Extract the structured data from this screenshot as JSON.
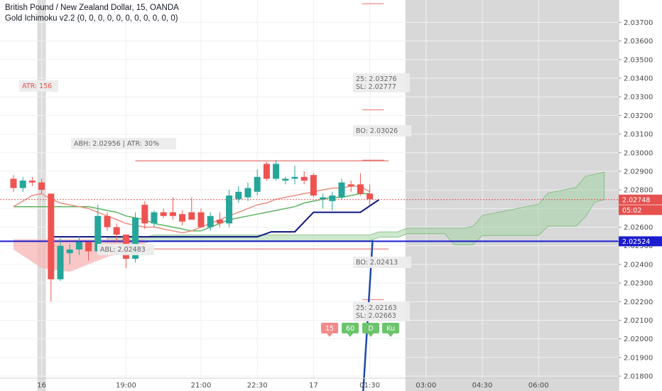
{
  "header": {
    "symbol_line": "British Pound / New Zealand Dollar, 15, OANDA",
    "indicator_line": "Gold Ichimoku v2.2 (0, 0, 0, 0, 0, 0, 0, 0, 0, 0, 0)"
  },
  "colors": {
    "bull": "#26a69a",
    "bear": "#ef5350",
    "tenkan": "#0d1680",
    "price_line": "#e5514f",
    "kijun_green": "#5fb35f",
    "cloud_green": "#a5d6a7",
    "cloud_red": "#f8b4b4",
    "blue_level": "#1c1cd0",
    "future_shade": "#d8d8d8"
  },
  "chart_data": {
    "type": "candlestick",
    "x_labels": [
      {
        "label": "16",
        "i": 3
      },
      {
        "label": "19:00",
        "i": 12
      },
      {
        "label": "21:00",
        "i": 20
      },
      {
        "label": "22:30",
        "i": 26
      },
      {
        "label": "17",
        "i": 32
      },
      {
        "label": "01:30",
        "i": 38
      },
      {
        "label": "03:00",
        "i": 44
      },
      {
        "label": "04:30",
        "i": 50
      },
      {
        "label": "06:00",
        "i": 56
      }
    ],
    "y_ticks": [
      "2.03700",
      "2.03600",
      "2.03500",
      "2.03400",
      "2.03300",
      "2.03200",
      "2.03100",
      "2.03000",
      "2.02900",
      "2.02800",
      "2.02700",
      "2.02600",
      "2.02500",
      "2.02400",
      "2.02300",
      "2.02200",
      "2.02100",
      "2.02000",
      "2.01900",
      "2.01800"
    ],
    "ylim": [
      2.0172,
      2.0382
    ],
    "candles": [
      {
        "o": 2.0286,
        "h": 2.0288,
        "l": 2.0279,
        "c": 2.0281
      },
      {
        "o": 2.0281,
        "h": 2.0287,
        "l": 2.0279,
        "c": 2.0285
      },
      {
        "o": 2.0285,
        "h": 2.0287,
        "l": 2.0282,
        "c": 2.0284
      },
      {
        "o": 2.0284,
        "h": 2.0286,
        "l": 2.0278,
        "c": 2.028
      },
      {
        "o": 2.0278,
        "h": 2.0278,
        "l": 2.022,
        "c": 2.0232
      },
      {
        "o": 2.0232,
        "h": 2.0254,
        "l": 2.0231,
        "c": 2.025
      },
      {
        "o": 2.0246,
        "h": 2.0251,
        "l": 2.024,
        "c": 2.0248
      },
      {
        "o": 2.0248,
        "h": 2.0255,
        "l": 2.0245,
        "c": 2.0252
      },
      {
        "o": 2.0252,
        "h": 2.0252,
        "l": 2.0242,
        "c": 2.0247
      },
      {
        "o": 2.0247,
        "h": 2.0272,
        "l": 2.0245,
        "c": 2.0266
      },
      {
        "o": 2.0266,
        "h": 2.0268,
        "l": 2.0258,
        "c": 2.026
      },
      {
        "o": 2.026,
        "h": 2.0262,
        "l": 2.0252,
        "c": 2.0256
      },
      {
        "o": 2.0256,
        "h": 2.0256,
        "l": 2.0238,
        "c": 2.0243
      },
      {
        "o": 2.0243,
        "h": 2.0268,
        "l": 2.0241,
        "c": 2.0265
      },
      {
        "o": 2.0272,
        "h": 2.0274,
        "l": 2.0259,
        "c": 2.0262
      },
      {
        "o": 2.0262,
        "h": 2.0269,
        "l": 2.026,
        "c": 2.0268
      },
      {
        "o": 2.0268,
        "h": 2.027,
        "l": 2.0265,
        "c": 2.0266
      },
      {
        "o": 2.0268,
        "h": 2.0276,
        "l": 2.0264,
        "c": 2.0266
      },
      {
        "o": 2.0267,
        "h": 2.0269,
        "l": 2.0261,
        "c": 2.0263
      },
      {
        "o": 2.0268,
        "h": 2.0276,
        "l": 2.0264,
        "c": 2.0264
      },
      {
        "o": 2.0268,
        "h": 2.027,
        "l": 2.0262,
        "c": 2.026
      },
      {
        "o": 2.026,
        "h": 2.0268,
        "l": 2.0258,
        "c": 2.0266
      },
      {
        "o": 2.0264,
        "h": 2.0268,
        "l": 2.026,
        "c": 2.0262
      },
      {
        "o": 2.0262,
        "h": 2.028,
        "l": 2.026,
        "c": 2.0277
      },
      {
        "o": 2.0275,
        "h": 2.0282,
        "l": 2.0273,
        "c": 2.0279
      },
      {
        "o": 2.0276,
        "h": 2.0284,
        "l": 2.0274,
        "c": 2.0281
      },
      {
        "o": 2.0279,
        "h": 2.0291,
        "l": 2.0277,
        "c": 2.0287
      },
      {
        "o": 2.0294,
        "h": 2.0295,
        "l": 2.0285,
        "c": 2.0286
      },
      {
        "o": 2.0286,
        "h": 2.0296,
        "l": 2.0285,
        "c": 2.0294
      },
      {
        "o": 2.0285,
        "h": 2.0287,
        "l": 2.0283,
        "c": 2.0286
      },
      {
        "o": 2.0286,
        "h": 2.0293,
        "l": 2.0283,
        "c": 2.0287
      },
      {
        "o": 2.0287,
        "h": 2.029,
        "l": 2.0283,
        "c": 2.0285
      },
      {
        "o": 2.0288,
        "h": 2.0289,
        "l": 2.0276,
        "c": 2.0277
      },
      {
        "o": 2.0275,
        "h": 2.0278,
        "l": 2.027,
        "c": 2.0276
      },
      {
        "o": 2.0274,
        "h": 2.0279,
        "l": 2.0269,
        "c": 2.0277
      },
      {
        "o": 2.0276,
        "h": 2.0286,
        "l": 2.0275,
        "c": 2.0284
      },
      {
        "o": 2.0283,
        "h": 2.0285,
        "l": 2.0279,
        "c": 2.0282
      },
      {
        "o": 2.0283,
        "h": 2.0289,
        "l": 2.0277,
        "c": 2.0278
      },
      {
        "o": 2.0278,
        "h": 2.0283,
        "l": 2.0272,
        "c": 2.0275
      }
    ],
    "series": [
      {
        "values": [
          2.0271,
          2.0274,
          2.0277,
          2.0278,
          2.0275,
          2.0273,
          2.0272,
          2.0271,
          2.027,
          2.0268,
          2.0266,
          2.0264,
          2.0262,
          2.0261,
          2.026,
          2.026,
          2.0259,
          2.0258,
          2.0257,
          2.0258,
          2.026,
          2.0262,
          2.0264,
          2.0266,
          2.0268,
          2.027,
          2.0272,
          2.0273,
          2.0275,
          2.0276,
          2.0277,
          2.0278,
          2.0279,
          2.028,
          2.0281,
          2.0281,
          2.0282,
          2.0282,
          2.0279
        ]
      },
      {
        "values": [
          2.0271,
          2.0271,
          2.0271,
          2.0271,
          2.0271,
          2.0271,
          2.0271,
          2.0271,
          2.0271,
          2.027,
          2.0269,
          2.0268,
          2.0266,
          2.0265,
          2.0264,
          2.0262,
          2.0261,
          2.026,
          2.0259,
          2.0258,
          2.0258,
          2.026,
          2.0262,
          2.0264,
          2.0265,
          2.0266,
          2.0267,
          2.0268,
          2.0269,
          2.027,
          2.0271,
          2.0273,
          2.0274,
          2.0275,
          2.0276,
          2.0276,
          2.0277,
          2.0278,
          2.0278
        ]
      },
      {
        "values": [
          2.02536,
          2.02536,
          2.02536,
          2.02536,
          2.02536,
          2.02548,
          2.02548,
          2.02548,
          2.02548,
          2.02548,
          2.02548,
          2.02548,
          2.02548,
          2.02548,
          2.02548,
          2.02548,
          2.02548,
          2.02548,
          2.02548,
          2.02548,
          2.02548,
          2.02548,
          2.02548,
          2.02548,
          2.02548,
          2.02548,
          2.02548,
          2.02548,
          2.02548,
          2.02565,
          2.02565,
          2.02565,
          2.02585,
          2.02585,
          2.02585,
          2.02585,
          2.02585,
          2.02585,
          2.02585,
          2.02585,
          2.02635,
          2.02635,
          2.02635,
          2.02635,
          2.02635,
          2.02635,
          2.02635,
          2.02685,
          2.02685,
          2.02685,
          2.02685,
          2.02735,
          2.02735,
          2.02748
        ]
      }
    ],
    "levels": [
      {
        "label": "2.02748",
        "y": 2.02748
      },
      {
        "label": "05:02",
        "y": 2.02692
      },
      {
        "label": "2.02524",
        "y": 2.02524
      }
    ],
    "annotations": [
      {
        "text": "ATR: 156",
        "y": 2.0334
      },
      {
        "text": "ABH: 2.02956 | ATR: 30%",
        "y": 2.0305
      },
      {
        "text": "ABL: 2.02483",
        "y": 2.02483
      },
      {
        "text": "25: 2.03276",
        "y": 2.03276
      },
      {
        "text": "SL: 2.02777",
        "y": 2.03276
      },
      {
        "text": "BO: 2.03026",
        "y": 2.03026
      },
      {
        "text": "BO: 2.02413",
        "y": 2.02413
      },
      {
        "text": "25: 2.02163",
        "y": 2.02163
      },
      {
        "text": "SL: 2.02663",
        "y": 2.02163
      }
    ],
    "tf_buttons": [
      "15",
      "60",
      "D",
      "Ku"
    ],
    "grid": true
  }
}
